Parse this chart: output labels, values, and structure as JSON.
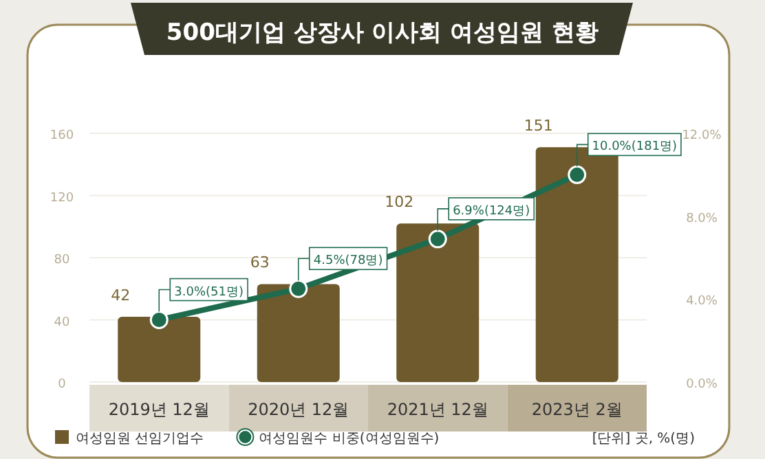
{
  "chart_data": {
    "type": "bar",
    "title": "500대기업 상장사 이사회 여성임원 현황",
    "categories": [
      "2019년 12월",
      "2020년 12월",
      "2021년 12월",
      "2023년 2월"
    ],
    "series": [
      {
        "name": "여성임원 선임기업수",
        "color": "#6e5a2c",
        "values": [
          42,
          63,
          102,
          151
        ],
        "value_labels": [
          "42",
          "63",
          "102",
          "151"
        ]
      },
      {
        "name": "여성임원수 비중(여성임원수)",
        "type": "line",
        "axis": "y2",
        "color": "#1f6b4e",
        "marker": "circle",
        "values": [
          3.0,
          4.5,
          6.9,
          10.0
        ],
        "value_labels": [
          "3.0%(51명)",
          "4.5%(78명)",
          "6.9%(124명)",
          "10.0%(181명)"
        ]
      }
    ],
    "ylim": [
      0,
      160
    ],
    "yticks": [
      0,
      40,
      80,
      120,
      160
    ],
    "y2lim": [
      0,
      12
    ],
    "y2ticks": [
      {
        "value": 0,
        "label": "0.0%"
      },
      {
        "value": 4,
        "label": "4.0%"
      },
      {
        "value": 8,
        "label": "8.0%"
      },
      {
        "value": 12,
        "label": "12.0%"
      }
    ],
    "grid": "y",
    "legend": "bottom left",
    "annotations": [
      "[단위] 곳, %(명)"
    ]
  }
}
